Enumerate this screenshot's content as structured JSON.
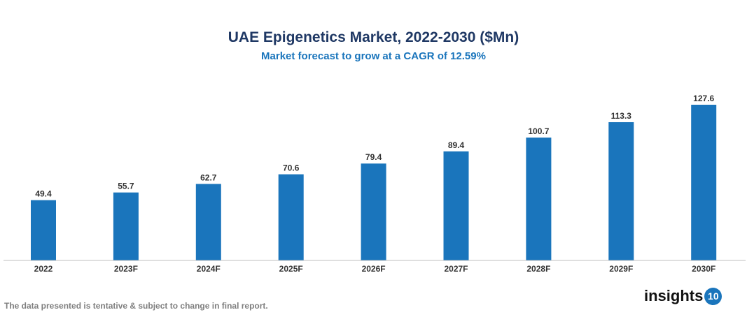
{
  "chart_data": {
    "type": "bar",
    "title": "UAE Epigenetics Market, 2022-2030 ($Mn)",
    "subtitle": "Market forecast to grow at a CAGR of 12.59%",
    "categories": [
      "2022",
      "2023F",
      "2024F",
      "2025F",
      "2026F",
      "2027F",
      "2028F",
      "2029F",
      "2030F"
    ],
    "values": [
      49.4,
      55.7,
      62.7,
      70.6,
      79.4,
      89.4,
      100.7,
      113.3,
      127.6
    ],
    "value_labels": [
      "49.4",
      "55.7",
      "62.7",
      "70.6",
      "79.4",
      "89.4",
      "100.7",
      "113.3",
      "127.6"
    ],
    "xlabel": "",
    "ylabel": "",
    "ylim": [
      0,
      130
    ],
    "grid": false,
    "bar_color": "#1a75bc"
  },
  "footnote": "The data presented is tentative & subject to change in final report.",
  "logo": {
    "text": "insights",
    "badge": "10"
  }
}
